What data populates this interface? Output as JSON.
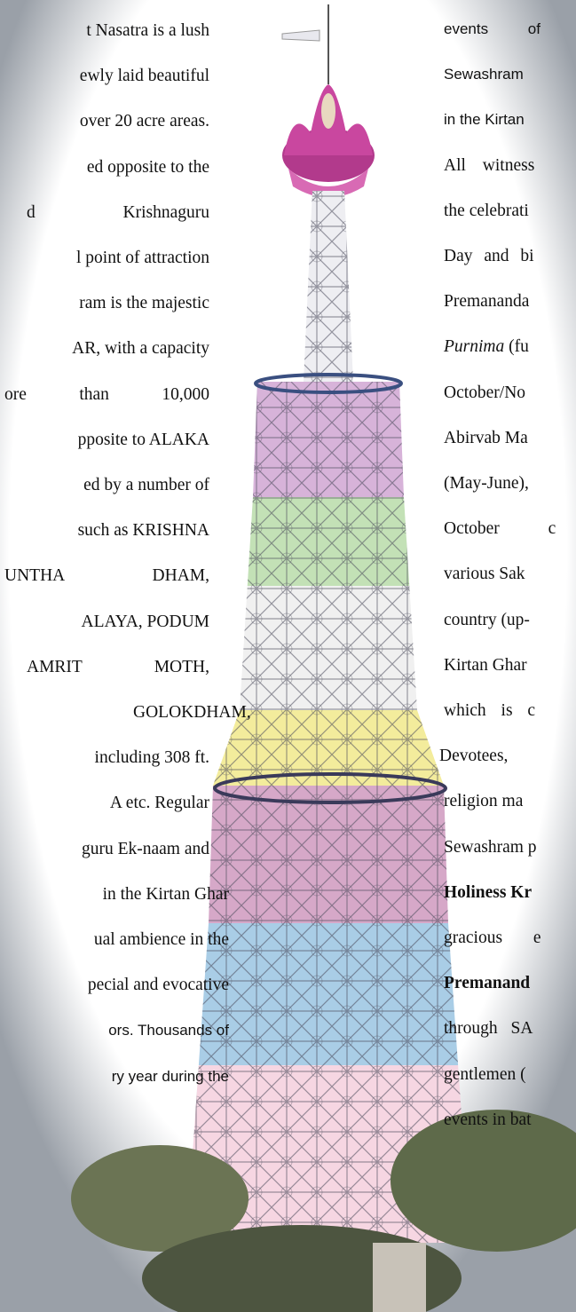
{
  "left_column": {
    "lines": [
      "t Nasatra is a lush",
      "ewly laid beautiful",
      "over 20 acre areas.",
      "ed opposite to the",
      "d Krishnaguru",
      "l point of attraction",
      "ram is the majestic",
      "AR, with a capacity",
      "ore than 10,000",
      "pposite to ALAKA",
      "ed by a number of",
      "such as KRISHNA",
      "UNTHA DHAM,",
      "ALAYA, PODUM",
      "AMRIT MOTH,",
      "GOLOKDHAM,",
      "including 308 ft.",
      "A etc. Regular",
      "guru Ek-naam and",
      "in the Kirtan Ghar",
      "ual ambience in the",
      "pecial and evocative",
      "ors. Thousands of",
      "ry year during the"
    ]
  },
  "right_column": {
    "lines": [
      "events of",
      "Sewashram",
      "in the Kirtan",
      "All witness",
      "the celebrati",
      "Day and bi",
      "Premananda",
      [
        "Purnima",
        "(fu"
      ],
      "October/No",
      "Abirvab Ma",
      "(May-June),",
      "October c",
      "various Sak",
      "country (up-",
      "Kirtan Ghar",
      "which is c",
      "Devotees,",
      "religion ma",
      "Sewashram p",
      "Holiness Kr",
      "gracious e",
      "Premanand",
      "through SA",
      "gentlemen (",
      "events in bat"
    ]
  }
}
